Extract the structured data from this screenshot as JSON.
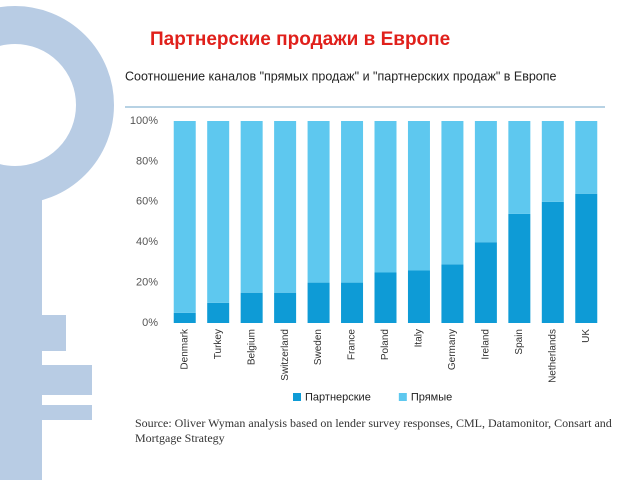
{
  "chart_data": {
    "type": "stacked-bar",
    "title": "Партнерские продажи в Европе",
    "subtitle": "Соотношение каналов \"прямых продаж\" и \"партнерских продаж\" в Европе",
    "categories": [
      "Denmark",
      "Turkey",
      "Belgium",
      "Switzerland",
      "Sweden",
      "France",
      "Poland",
      "Italy",
      "Germany",
      "Ireland",
      "Spain",
      "Netherlands",
      "UK"
    ],
    "series": [
      {
        "name": "Партнерские",
        "color": "#0e9bd6",
        "values": [
          5,
          10,
          15,
          15,
          20,
          20,
          25,
          26,
          29,
          40,
          54,
          60,
          64
        ]
      },
      {
        "name": "Прямые",
        "color": "#5ec8ef",
        "values": [
          95,
          90,
          85,
          85,
          80,
          80,
          75,
          74,
          71,
          60,
          46,
          40,
          36
        ]
      }
    ],
    "ylim": [
      0,
      100
    ],
    "yticks": [
      {
        "value": 0,
        "label": "0%"
      },
      {
        "value": 20,
        "label": "20%"
      },
      {
        "value": 40,
        "label": "40%"
      },
      {
        "value": 60,
        "label": "60%"
      },
      {
        "value": 80,
        "label": "80%"
      },
      {
        "value": 100,
        "label": "100%"
      }
    ],
    "grid": false,
    "source": "Source: Oliver Wyman analysis based on lender survey responses, CML, Datamonitor, Consart and Mortgage Strategy"
  }
}
